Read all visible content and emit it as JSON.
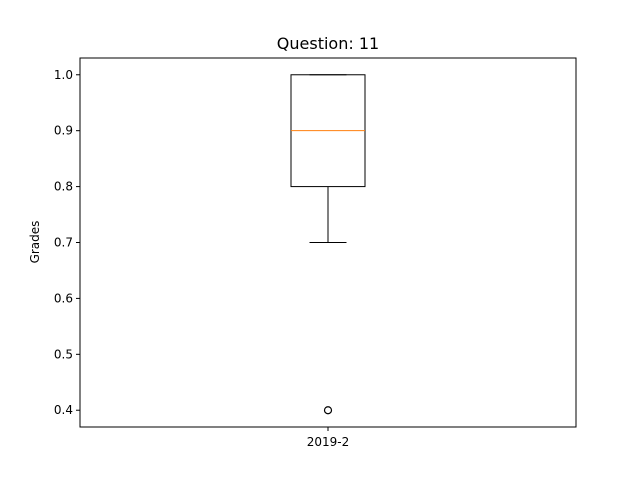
{
  "chart_data": {
    "type": "box",
    "title": "Question: 11",
    "xlabel": "",
    "ylabel": "Grades",
    "categories": [
      "2019-2"
    ],
    "ylim": [
      0.37,
      1.03
    ],
    "yticks": [
      "0.4",
      "0.5",
      "0.6",
      "0.7",
      "0.8",
      "0.9",
      "1.0"
    ],
    "grid": false,
    "series": [
      {
        "category": "2019-2",
        "whisker_low": 0.7,
        "q1": 0.8,
        "median": 0.9,
        "q3": 1.0,
        "whisker_high": 1.0,
        "outliers": [
          0.4
        ]
      }
    ],
    "colors": {
      "box": "#000000",
      "median": "#ff7f0e",
      "outlier": "#000000"
    }
  }
}
